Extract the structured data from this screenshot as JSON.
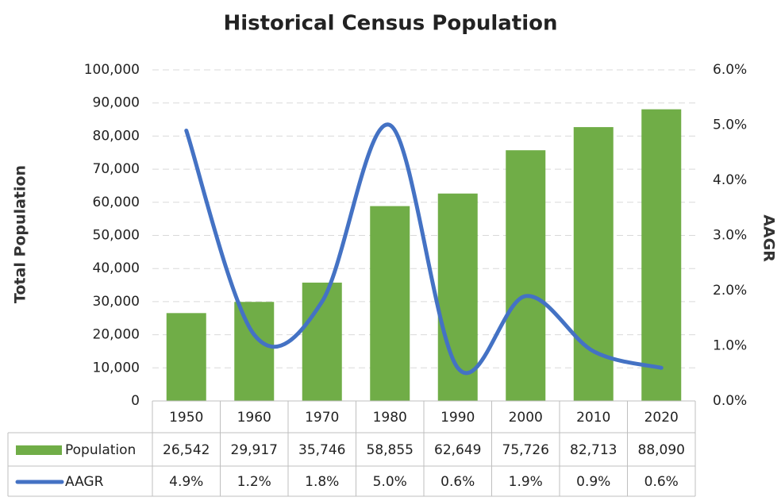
{
  "chart_data": {
    "type": "bar-line",
    "title": "Historical Census Population",
    "y_label": "Total Population",
    "y2_label": "AAGR",
    "categories": [
      "1950",
      "1960",
      "1970",
      "1980",
      "1990",
      "2000",
      "2010",
      "2020"
    ],
    "series": [
      {
        "name": "Population",
        "type": "bar",
        "color": "#70ad47",
        "values": [
          26542,
          29917,
          35746,
          58855,
          62649,
          75726,
          82713,
          88090
        ],
        "value_labels": [
          "26,542",
          "29,917",
          "35,746",
          "58,855",
          "62,649",
          "75,726",
          "82,713",
          "88,090"
        ]
      },
      {
        "name": "AAGR",
        "type": "line",
        "axis": "y2",
        "color": "#4472c4",
        "values": [
          4.9,
          1.2,
          1.8,
          5.0,
          0.6,
          1.9,
          0.9,
          0.6
        ],
        "value_labels": [
          "4.9%",
          "1.2%",
          "1.8%",
          "5.0%",
          "0.6%",
          "1.9%",
          "0.9%",
          "0.6%"
        ]
      }
    ],
    "ylim": [
      0,
      100000
    ],
    "yticks": [
      0,
      {
        "value": 10000,
        "label": "10,000"
      },
      {
        "value": 20000,
        "label": "20,000"
      },
      {
        "value": 30000,
        "label": "30,000"
      },
      {
        "value": 40000,
        "label": "40,000"
      },
      {
        "value": 50000,
        "label": "50,000"
      },
      {
        "value": 60000,
        "label": "60,000"
      },
      {
        "value": 70000,
        "label": "70,000"
      },
      {
        "value": 80000,
        "label": "80,000"
      },
      {
        "value": 90000,
        "label": "90,000"
      },
      {
        "value": 100000,
        "label": "100,000"
      }
    ],
    "y2lim": [
      0,
      6
    ],
    "y2ticks": [
      {
        "value": 0,
        "label": "0.0%"
      },
      {
        "value": 1,
        "label": "1.0%"
      },
      {
        "value": 2,
        "label": "2.0%"
      },
      {
        "value": 3,
        "label": "3.0%"
      },
      {
        "value": 4,
        "label": "4.0%"
      },
      {
        "value": 5,
        "label": "5.0%"
      },
      {
        "value": 6,
        "label": "6.0%"
      }
    ],
    "grid": true,
    "smooth": true,
    "data_table": true
  }
}
